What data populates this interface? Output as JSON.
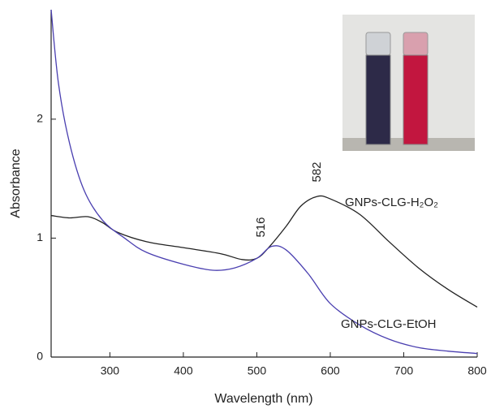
{
  "chart_data": {
    "type": "line",
    "xlabel": "Wavelength (nm)",
    "ylabel": "Absorbance",
    "xlim": [
      220,
      800
    ],
    "ylim": [
      0,
      2.92
    ],
    "xticks": [
      300,
      400,
      500,
      600,
      700,
      800
    ],
    "yticks": [
      0,
      1,
      2
    ],
    "annotations": [
      "516",
      "582"
    ],
    "series": [
      {
        "name": "GNPs-CLG-H₂O₂",
        "color": "#222222",
        "x": [
          220,
          245,
          270,
          290,
          310,
          350,
          400,
          450,
          480,
          500,
          516,
          540,
          560,
          582,
          600,
          640,
          680,
          720,
          760,
          800
        ],
        "values": [
          1.19,
          1.17,
          1.18,
          1.13,
          1.05,
          0.97,
          0.92,
          0.87,
          0.82,
          0.83,
          0.92,
          1.1,
          1.27,
          1.35,
          1.33,
          1.2,
          0.97,
          0.75,
          0.57,
          0.42
        ]
      },
      {
        "name": "GNPs-CLG-EtOH",
        "color": "#4a3fb0",
        "x": [
          220,
          230,
          245,
          265,
          290,
          320,
          350,
          400,
          440,
          470,
          500,
          520,
          540,
          570,
          600,
          640,
          680,
          720,
          760,
          800
        ],
        "values": [
          2.92,
          2.3,
          1.8,
          1.4,
          1.15,
          1.0,
          0.88,
          0.78,
          0.73,
          0.75,
          0.83,
          0.93,
          0.9,
          0.7,
          0.45,
          0.27,
          0.15,
          0.08,
          0.05,
          0.03
        ]
      }
    ]
  }
}
